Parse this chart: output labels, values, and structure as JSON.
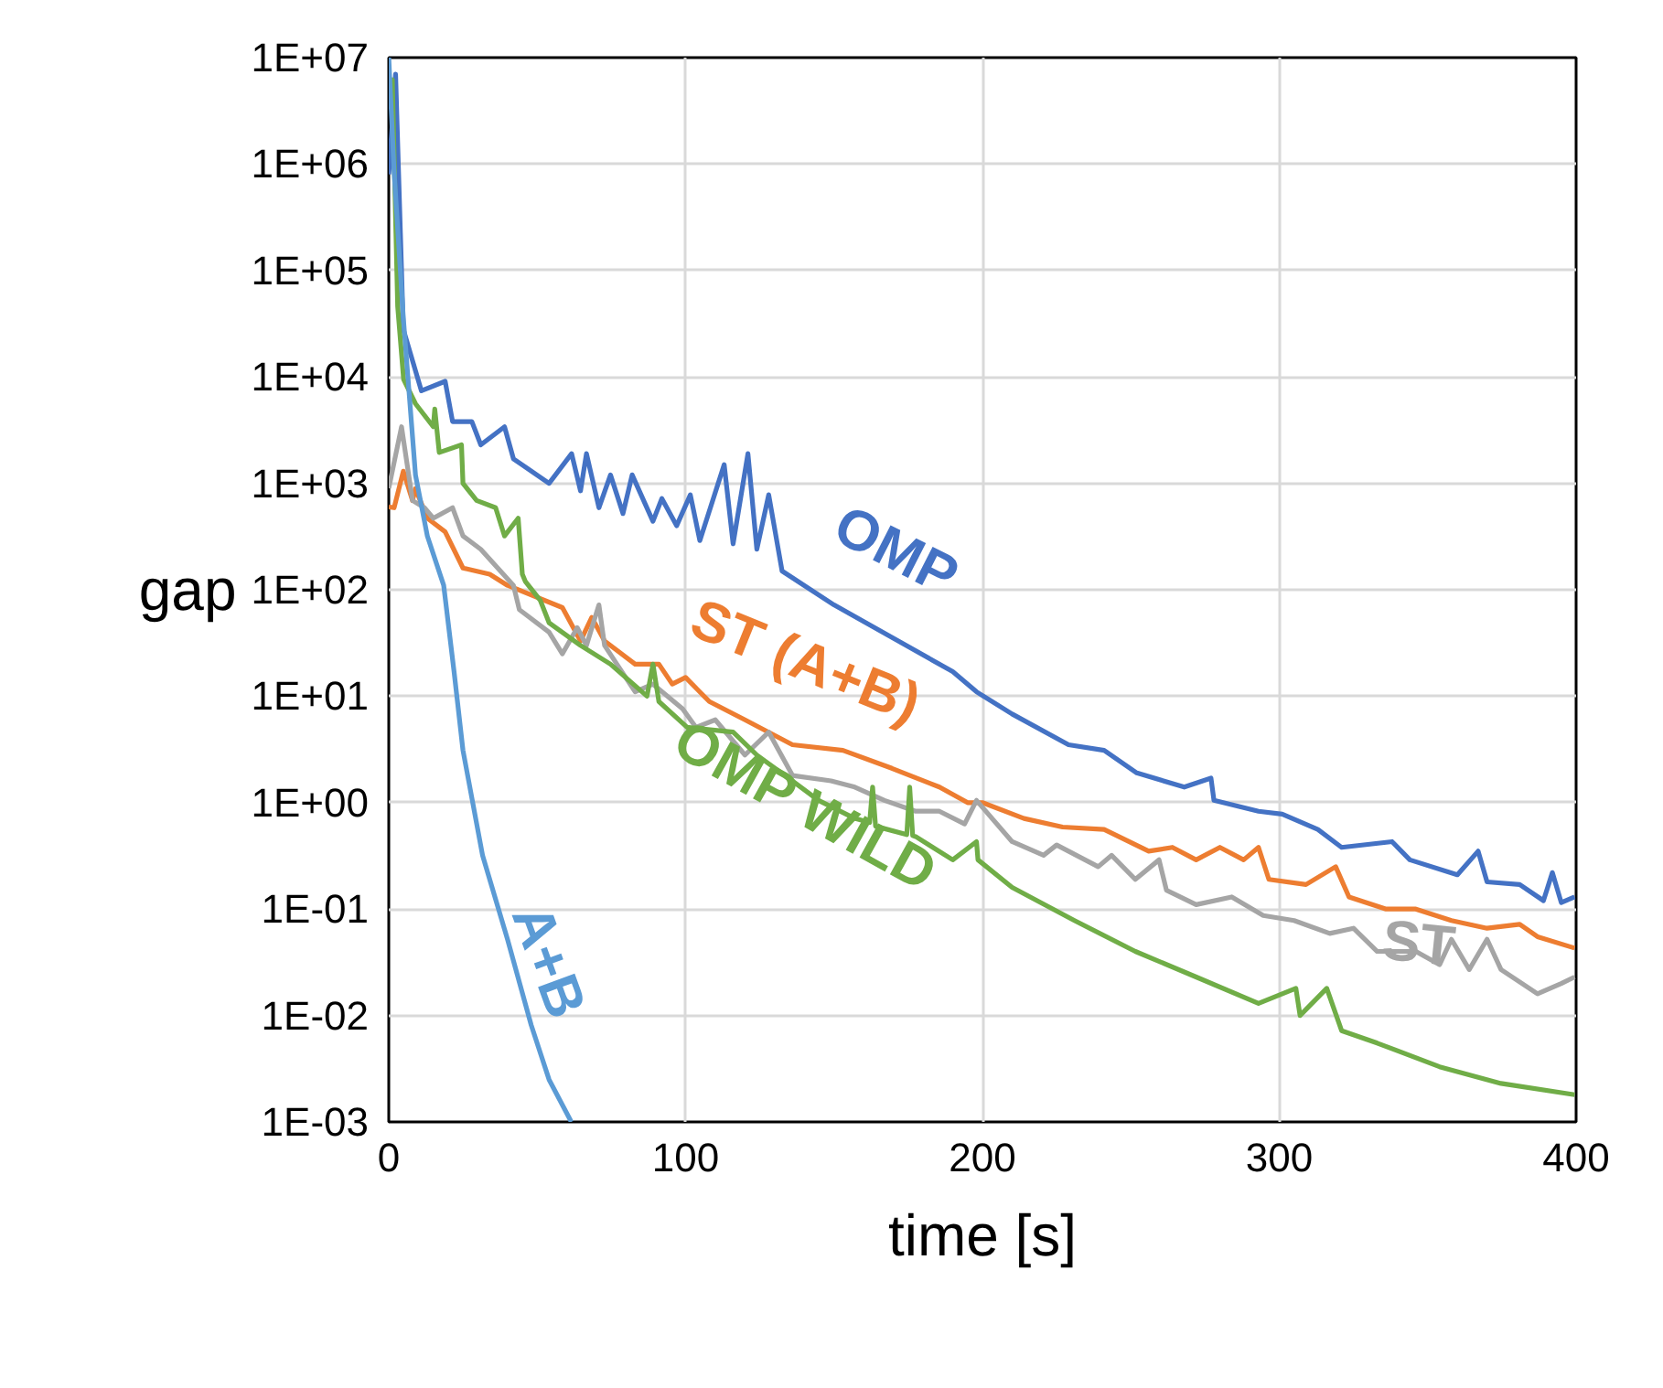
{
  "chart_data": {
    "type": "line",
    "xlabel": "time [s]",
    "ylabel": "gap",
    "log": "y",
    "grid": true,
    "xlim": [
      0,
      400
    ],
    "xticks": [
      0,
      100,
      200,
      300,
      400
    ],
    "ylim": [
      0.001,
      10000000
    ],
    "yticks": [
      {
        "value": 0.001,
        "label": "1E-03"
      },
      {
        "value": 0.01,
        "label": "1E-02"
      },
      {
        "value": 0.1,
        "label": "1E-01"
      },
      {
        "value": 1,
        "label": "1E+00"
      },
      {
        "value": 10,
        "label": "1E+01"
      },
      {
        "value": 100,
        "label": "1E+02"
      },
      {
        "value": 1000,
        "label": "1E+03"
      },
      {
        "value": 10000,
        "label": "1E+04"
      },
      {
        "value": 100000,
        "label": "1E+05"
      },
      {
        "value": 1000000,
        "label": "1E+06"
      },
      {
        "value": 10000000,
        "label": "1E+07"
      }
    ],
    "series": [
      {
        "name": "OMP",
        "color": "#4472c4",
        "x": [
          0,
          2.3,
          4.9,
          11,
          19,
          21.5,
          28,
          31,
          39,
          42,
          54,
          61.6,
          64.6,
          66.6,
          70.8,
          74.7,
          78.9,
          82,
          89,
          92,
          97,
          101.6,
          104.8,
          113,
          116,
          121,
          124,
          128,
          132.5,
          150,
          170,
          190,
          198,
          210,
          229,
          241,
          252,
          268,
          277,
          278,
          293,
          301,
          313,
          321,
          338,
          344,
          360,
          367,
          370,
          381,
          389,
          392,
          395,
          399.5
        ],
        "values": [
          800000,
          7000000,
          28000,
          7400,
          9100,
          3800,
          3800,
          2300,
          3400,
          1700,
          1000,
          1900,
          850,
          1900,
          590,
          1200,
          520,
          1200,
          440,
          720,
          400,
          780,
          290,
          1500,
          270,
          1900,
          240,
          780,
          150,
          72,
          35,
          17,
          11,
          6.8,
          3.5,
          3.1,
          1.9,
          1.4,
          1.7,
          1.05,
          0.83,
          0.78,
          0.56,
          0.38,
          0.43,
          0.29,
          0.21,
          0.35,
          0.18,
          0.17,
          0.12,
          0.22,
          0.115,
          0.13
        ]
      },
      {
        "name": "ST (A+B)",
        "color": "#ed7d31",
        "x": [
          0,
          1.8,
          4.9,
          8,
          9,
          13,
          19,
          25,
          34,
          40,
          58.5,
          64.6,
          68.4,
          72.7,
          83,
          91,
          95.5,
          100,
          108,
          120,
          136,
          153,
          169.5,
          185.5,
          195,
          200,
          214,
          227,
          241,
          256,
          264,
          272,
          280,
          288,
          293,
          296.5,
          309,
          319,
          323.5,
          336,
          346,
          358,
          370,
          381,
          387,
          399.5
        ],
        "values": [
          600,
          590,
          1300,
          690,
          890,
          470,
          350,
          160,
          140,
          110,
          68,
          33,
          55,
          33,
          20,
          20,
          13,
          15,
          8.9,
          6,
          3.5,
          3.1,
          2.1,
          1.4,
          1.0,
          1.0,
          0.71,
          0.59,
          0.56,
          0.35,
          0.38,
          0.29,
          0.38,
          0.29,
          0.38,
          0.19,
          0.17,
          0.25,
          0.13,
          0.1,
          0.1,
          0.078,
          0.066,
          0.072,
          0.055,
          0.043
        ]
      },
      {
        "name": "ST",
        "color": "#a5a5a5",
        "x": [
          0,
          4.3,
          8,
          12,
          15,
          21.5,
          25,
          31,
          42,
          44,
          54,
          58.5,
          63.5,
          66.6,
          70.8,
          72.7,
          83,
          89,
          99,
          103.5,
          110,
          120,
          128,
          136,
          149,
          157,
          167,
          177.5,
          185.5,
          194,
          198,
          210,
          220.6,
          225,
          239,
          243.5,
          251.5,
          259.5,
          262,
          272,
          284,
          294.6,
          305,
          317,
          325,
          333,
          346,
          354,
          358,
          364,
          370,
          374.7,
          387,
          395,
          399.5
        ],
        "values": [
          900,
          3400,
          690,
          590,
          470,
          590,
          320,
          240,
          110,
          65,
          40,
          25,
          44,
          30,
          72,
          30,
          11,
          13,
          7.6,
          5.1,
          6,
          2.8,
          4.6,
          1.8,
          1.6,
          1.4,
          1.05,
          0.83,
          0.83,
          0.63,
          1.05,
          0.43,
          0.32,
          0.4,
          0.25,
          0.32,
          0.19,
          0.29,
          0.15,
          0.11,
          0.13,
          0.087,
          0.078,
          0.059,
          0.066,
          0.04,
          0.04,
          0.03,
          0.052,
          0.027,
          0.052,
          0.027,
          0.016,
          0.02,
          0.023
        ]
      },
      {
        "name": "OMP WILD",
        "color": "#70ad47",
        "x": [
          0,
          1.2,
          3,
          5,
          9,
          15,
          15.5,
          17,
          24.5,
          25,
          29.6,
          36,
          39,
          43.6,
          45,
          46,
          51,
          54,
          64.6,
          74.7,
          87,
          89,
          91,
          100.5,
          116,
          124,
          136,
          144.8,
          157,
          162,
          163,
          164,
          174.5,
          175.5,
          176.5,
          177.5,
          190,
          198,
          198.5,
          210,
          231,
          251.5,
          272,
          293,
          305.6,
          307,
          316,
          321,
          333,
          354,
          374.7,
          399.5
        ],
        "values": [
          5000000,
          6200000,
          46000,
          9500,
          5600,
          3400,
          5000,
          1950,
          2300,
          1000,
          690,
          590,
          320,
          470,
          140,
          120,
          80,
          49,
          30,
          20,
          10,
          20,
          8.9,
          5.1,
          4.6,
          2.8,
          1.6,
          1.05,
          0.71,
          0.65,
          1.4,
          0.6,
          0.5,
          1.4,
          0.49,
          0.48,
          0.29,
          0.43,
          0.29,
          0.16,
          0.078,
          0.04,
          0.023,
          0.013,
          0.018,
          0.01,
          0.018,
          0.0072,
          0.0055,
          0.0033,
          0.0023,
          0.0018
        ]
      },
      {
        "name": "A+B",
        "color": "#5b9bd5",
        "x": [
          0,
          1.8,
          4.9,
          7,
          9,
          13,
          18.5,
          22,
          25,
          31.6,
          40,
          48,
          54,
          61.5
        ],
        "values": [
          10000000,
          850000,
          36000,
          6300,
          1200,
          320,
          110,
          17,
          3.1,
          0.32,
          0.052,
          0.0081,
          0.0025,
          0.001
        ]
      }
    ]
  }
}
